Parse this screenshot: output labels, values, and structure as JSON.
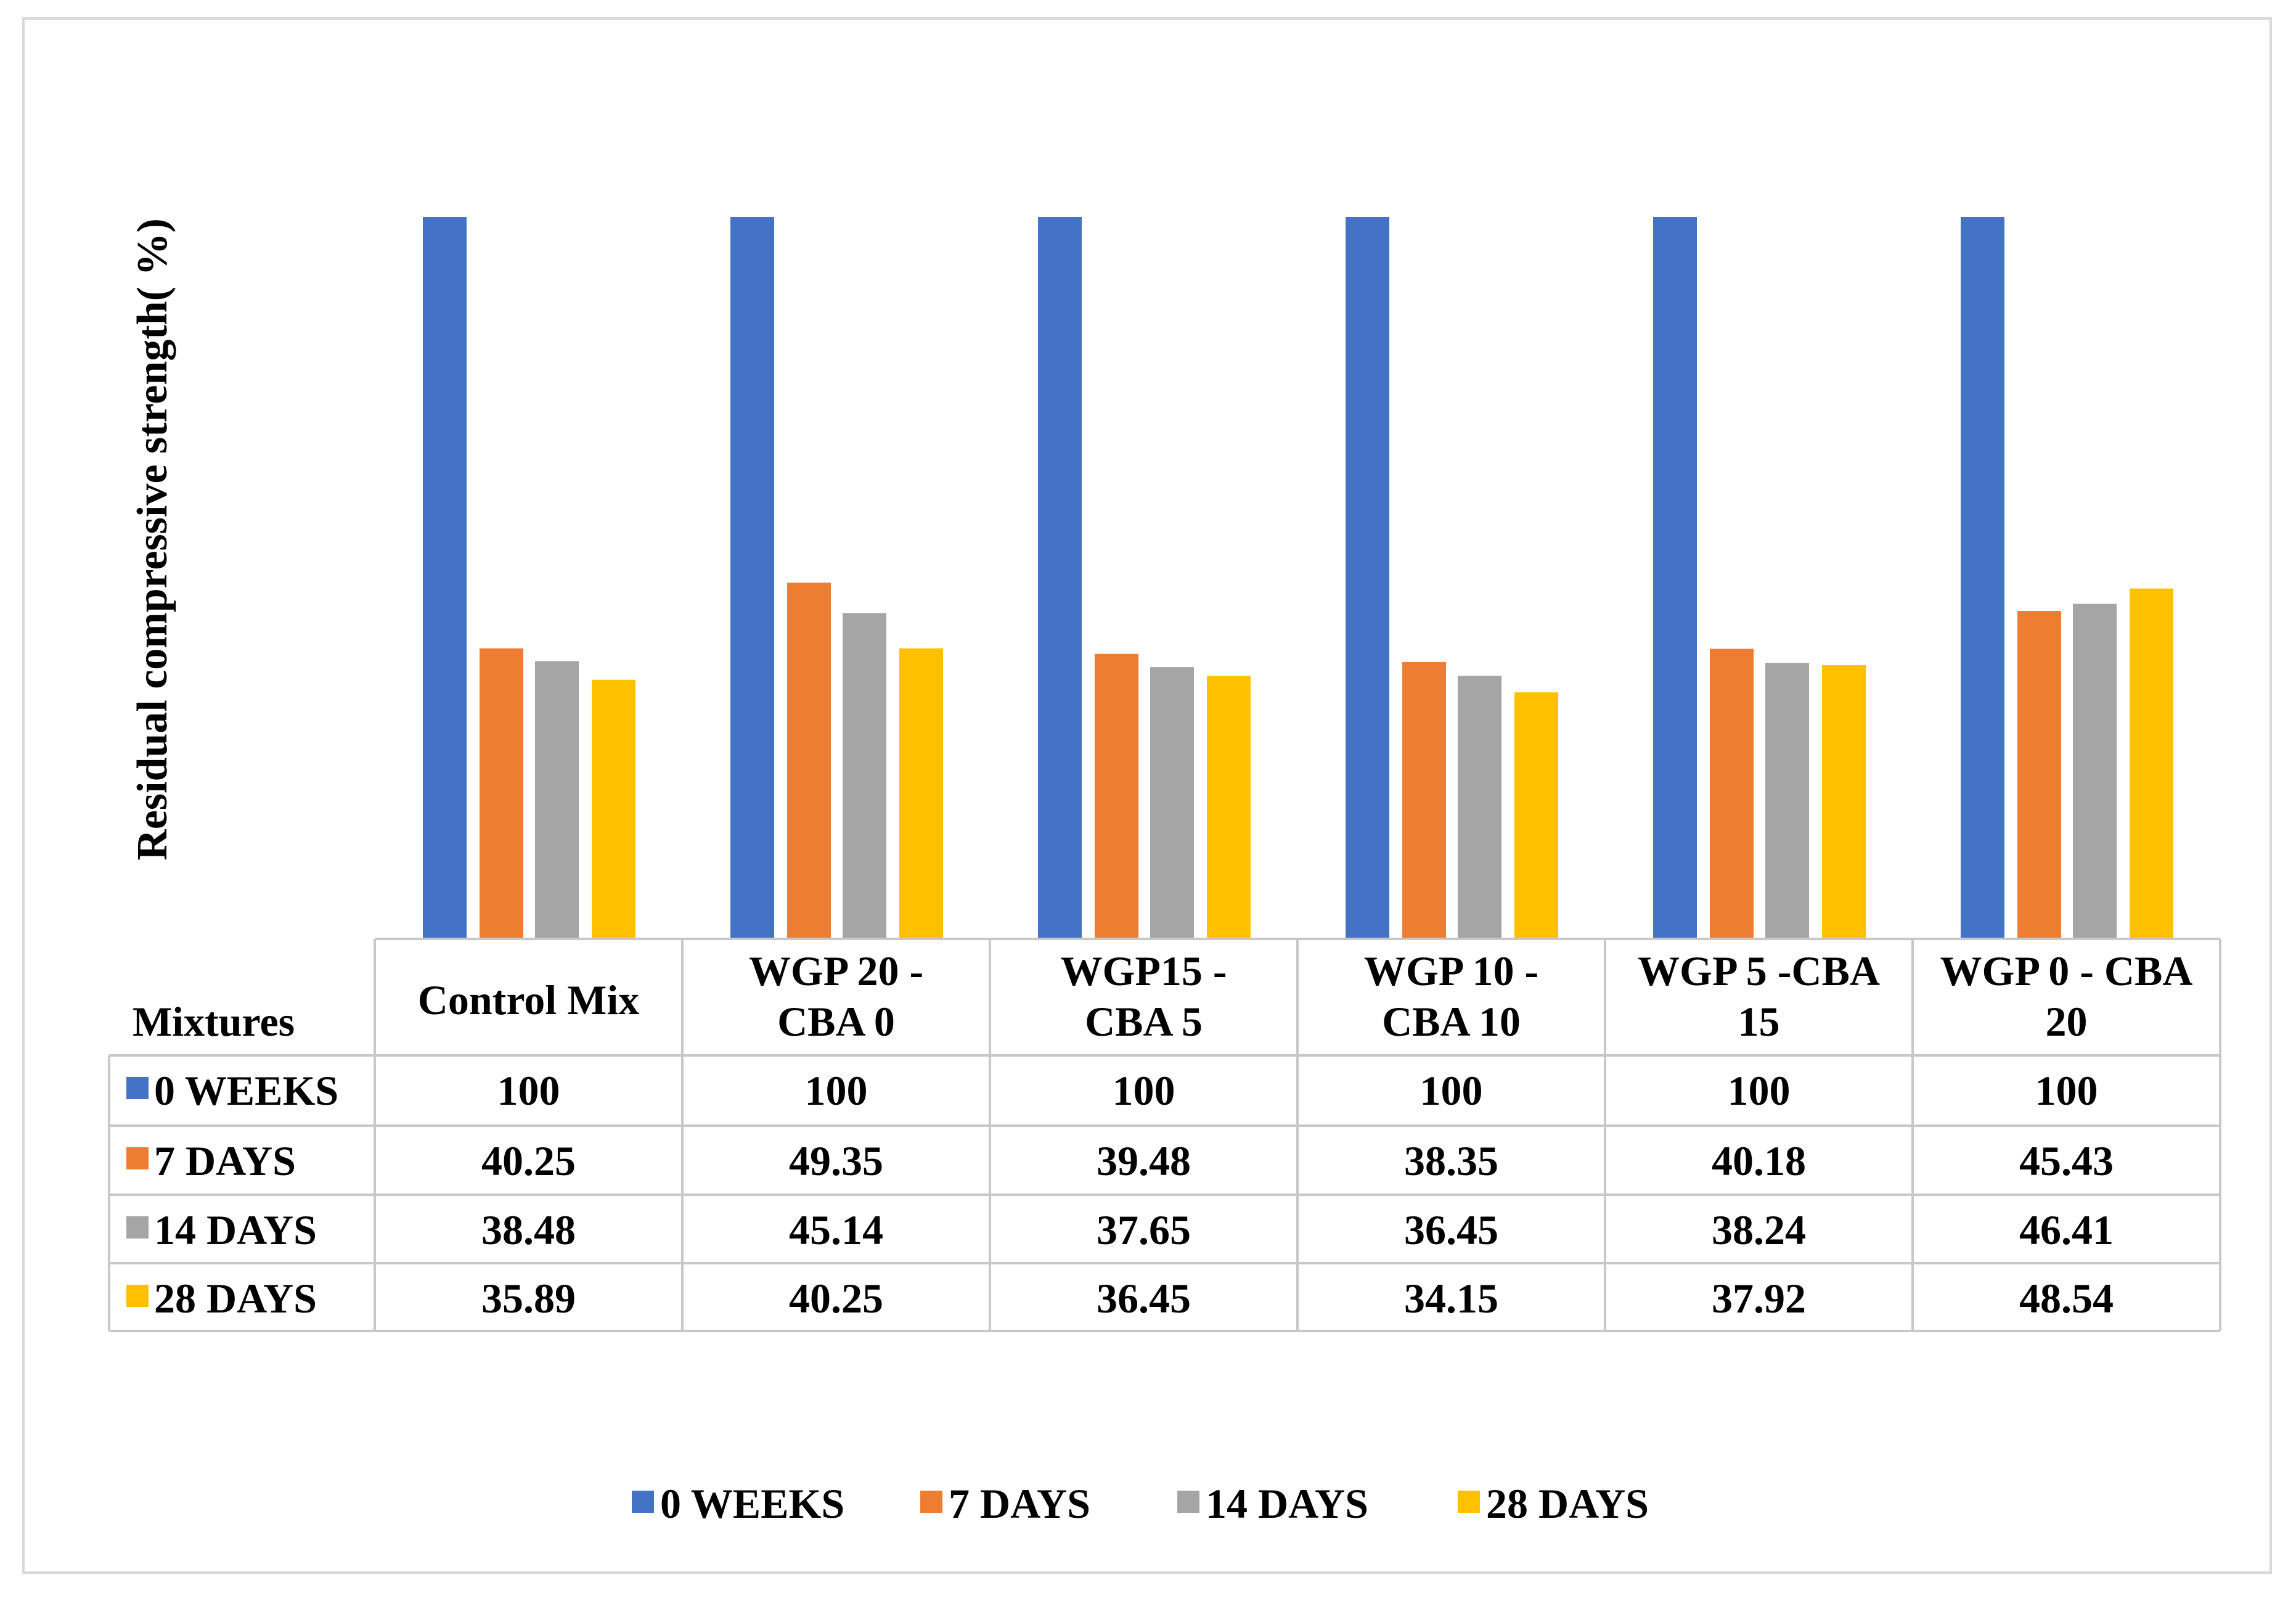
{
  "chart_data": {
    "type": "bar",
    "title": "",
    "xlabel": "Mixtures",
    "ylabel": "Residual compressive strength( %)",
    "ylim": [
      0,
      100
    ],
    "grid": false,
    "legend_position": "bottom",
    "categories": [
      [
        "Control Mix"
      ],
      [
        "WGP 20 -",
        "CBA 0"
      ],
      [
        "WGP15 -",
        "CBA 5"
      ],
      [
        "WGP 10 -",
        "CBA 10"
      ],
      [
        "WGP 5 -CBA",
        "15"
      ],
      [
        "WGP 0 - CBA",
        "20"
      ]
    ],
    "series": [
      {
        "name": "0 WEEKS",
        "color": "#4472C4",
        "values": [
          100,
          100,
          100,
          100,
          100,
          100
        ]
      },
      {
        "name": "7 DAYS",
        "color": "#ED7D31",
        "values": [
          40.25,
          49.35,
          39.48,
          38.35,
          40.18,
          45.43
        ]
      },
      {
        "name": "14 DAYS",
        "color": "#A5A5A5",
        "values": [
          38.48,
          45.14,
          37.65,
          36.45,
          38.24,
          46.41
        ]
      },
      {
        "name": "28 DAYS",
        "color": "#FFC000",
        "values": [
          35.89,
          40.25,
          36.45,
          34.15,
          37.92,
          48.54
        ]
      }
    ],
    "table_values": [
      [
        "100",
        "100",
        "100",
        "100",
        "100",
        "100"
      ],
      [
        "40.25",
        "49.35",
        "39.48",
        "38.35",
        "40.18",
        "45.43"
      ],
      [
        "38.48",
        "45.14",
        "37.65",
        "36.45",
        "38.24",
        "46.41"
      ],
      [
        "35.89",
        "40.25",
        "36.45",
        "34.15",
        "37.92",
        "48.54"
      ]
    ]
  }
}
